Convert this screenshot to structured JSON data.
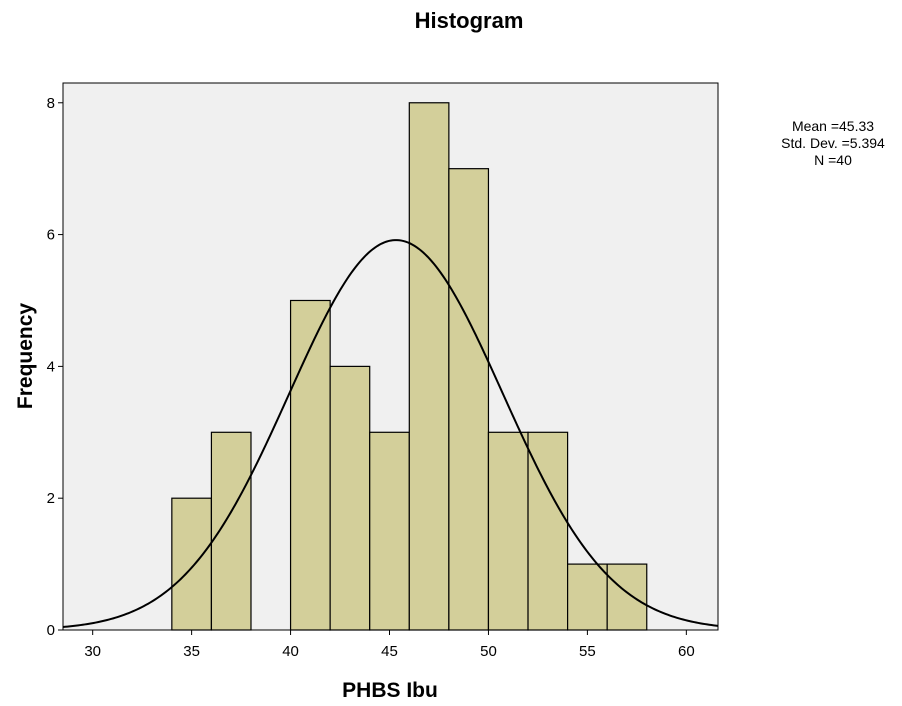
{
  "chart_data": {
    "type": "bar",
    "title": "Histogram",
    "xlabel": "PHBS Ibu",
    "ylabel": "Frequency",
    "xlim": [
      28.5,
      61.6
    ],
    "ylim": [
      0,
      8.3
    ],
    "x_ticks": [
      30,
      35,
      40,
      45,
      50,
      55,
      60
    ],
    "y_ticks": [
      0,
      2,
      4,
      6,
      8
    ],
    "bin_width": 2,
    "bins": [
      {
        "start": 34,
        "end": 36,
        "count": 2
      },
      {
        "start": 36,
        "end": 38,
        "count": 3
      },
      {
        "start": 38,
        "end": 40,
        "count": 0
      },
      {
        "start": 40,
        "end": 42,
        "count": 5
      },
      {
        "start": 42,
        "end": 44,
        "count": 4
      },
      {
        "start": 44,
        "end": 46,
        "count": 3
      },
      {
        "start": 46,
        "end": 48,
        "count": 8
      },
      {
        "start": 48,
        "end": 50,
        "count": 7
      },
      {
        "start": 50,
        "end": 52,
        "count": 3
      },
      {
        "start": 52,
        "end": 54,
        "count": 3
      },
      {
        "start": 54,
        "end": 56,
        "count": 1
      },
      {
        "start": 56,
        "end": 58,
        "count": 1
      }
    ],
    "normal_curve": {
      "mean": 45.33,
      "std_dev": 5.394,
      "n": 40
    },
    "stats": {
      "mean": "Mean =45.33",
      "std_dev": "Std. Dev. =5.394",
      "n": "N =40"
    },
    "colors": {
      "plot_background": "#f0f0f0",
      "bar_fill": "#d3cf9a",
      "bar_stroke": "#000000",
      "curve": "#000000"
    },
    "legend": "none",
    "grid": false
  }
}
